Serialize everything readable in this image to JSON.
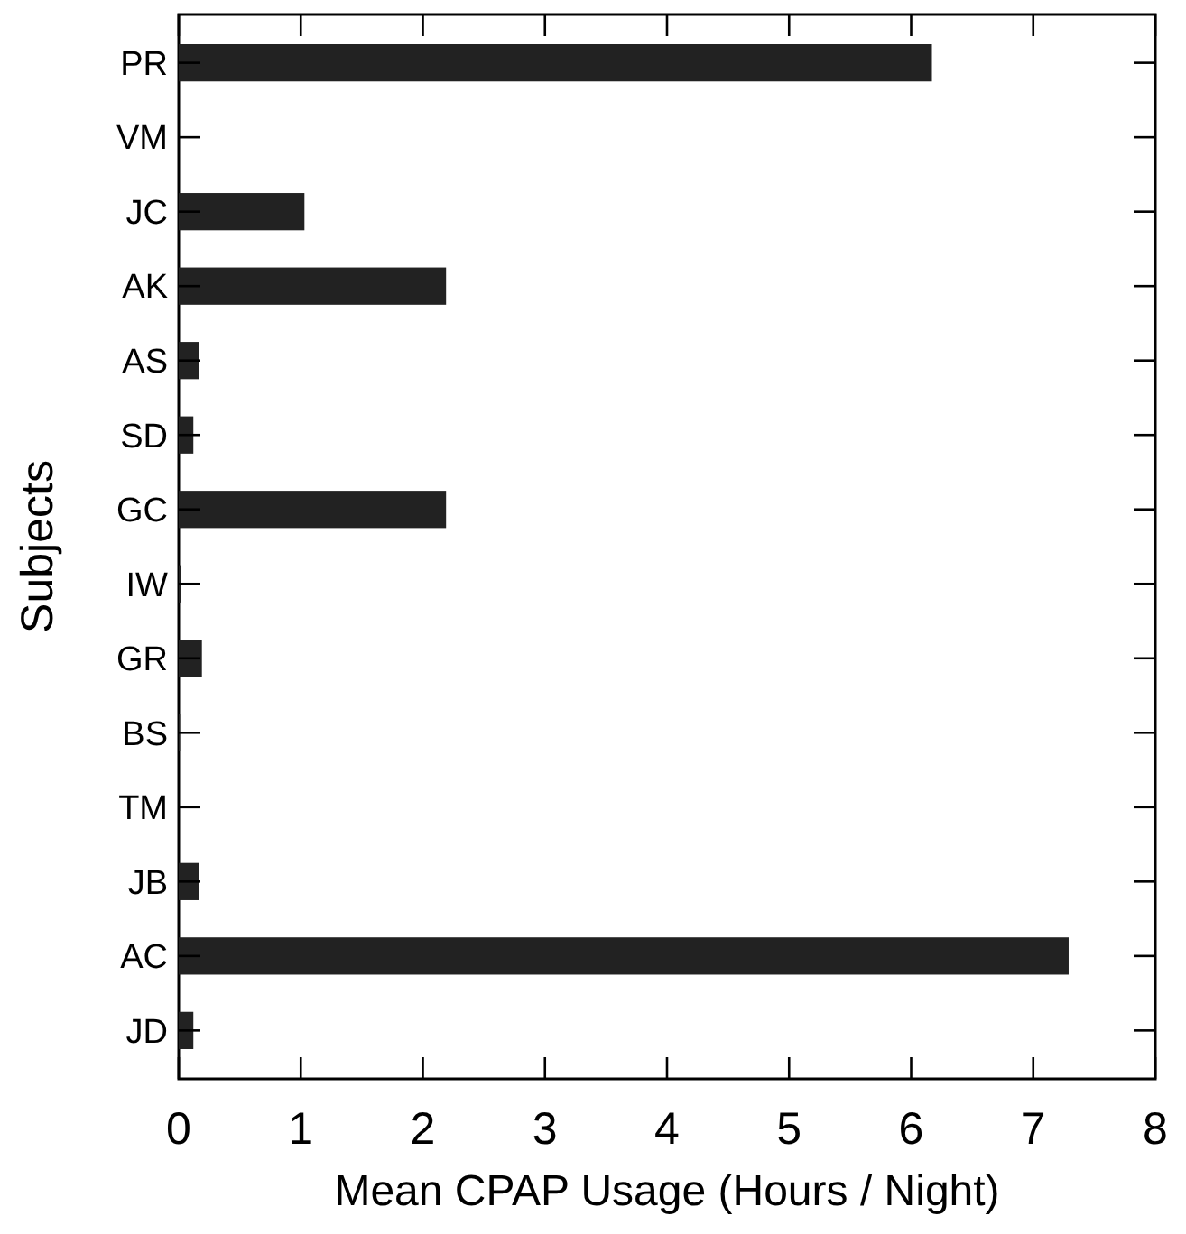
{
  "chart_data": {
    "type": "bar",
    "orientation": "horizontal",
    "xlabel": "Mean CPAP Usage (Hours / Night)",
    "ylabel": "Subjects",
    "categories": [
      "PR",
      "VM",
      "JC",
      "AK",
      "AS",
      "SD",
      "GC",
      "IW",
      "GR",
      "BS",
      "TM",
      "JB",
      "AC",
      "JD"
    ],
    "values": [
      6.17,
      0,
      1.03,
      2.19,
      0.17,
      0.12,
      2.19,
      0.02,
      0.19,
      0.01,
      0,
      0.17,
      7.29,
      0.12
    ],
    "color": "#222222",
    "xlim": [
      0,
      8
    ],
    "xticks": [
      0,
      1,
      2,
      3,
      4,
      5,
      6,
      7,
      8
    ],
    "grid": false
  }
}
